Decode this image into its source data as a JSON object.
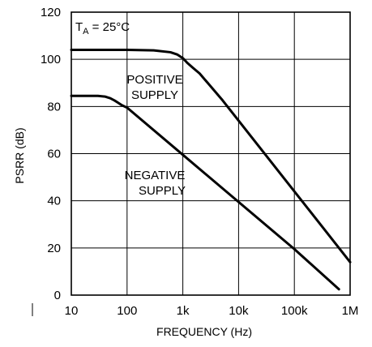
{
  "chart_data": {
    "type": "line",
    "title": "",
    "xlabel": "FREQUENCY (Hz)",
    "ylabel": "PSRR (dB)",
    "x_scale": "log",
    "xlim": [
      10,
      1000000
    ],
    "ylim": [
      0,
      120
    ],
    "x_ticks": [
      10,
      100,
      1000,
      10000,
      100000,
      1000000
    ],
    "x_tick_labels": [
      "10",
      "100",
      "1k",
      "10k",
      "100k",
      "1M"
    ],
    "y_ticks": [
      0,
      20,
      40,
      60,
      80,
      100,
      120
    ],
    "y_tick_labels": [
      "0",
      "20",
      "40",
      "60",
      "80",
      "100",
      "120"
    ],
    "grid": true,
    "annotations": {
      "condition_main": "T",
      "condition_sub": "A",
      "condition_rest": " = 25°C"
    },
    "series": [
      {
        "label_lines": [
          "POSITIVE",
          "SUPPLY"
        ],
        "x": [
          10,
          100,
          300,
          600,
          800,
          1000,
          1200,
          1500,
          2000,
          5000,
          10000,
          100000,
          1000000
        ],
        "y": [
          104,
          104,
          103.8,
          103,
          102,
          100.5,
          98.5,
          96.5,
          94,
          83,
          74,
          44,
          14
        ]
      },
      {
        "label_lines": [
          "NEGATIVE",
          "SUPPLY"
        ],
        "x": [
          10,
          30,
          40,
          50,
          60,
          70,
          80,
          100,
          1000,
          10000,
          100000,
          630000
        ],
        "y": [
          84.5,
          84.5,
          84.2,
          83.5,
          82.5,
          81.5,
          80.6,
          79.5,
          59.5,
          39.5,
          19.5,
          2.5
        ]
      }
    ]
  }
}
